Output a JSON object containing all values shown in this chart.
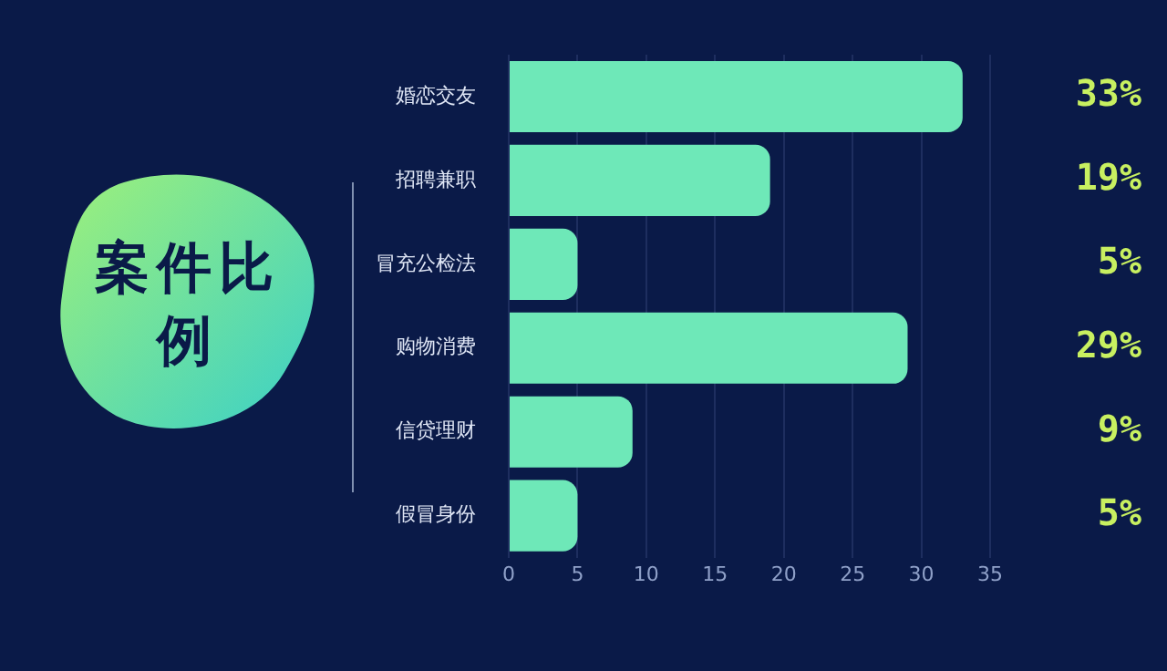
{
  "chart_data": {
    "type": "bar",
    "orientation": "horizontal",
    "title": "案件比例",
    "categories": [
      "婚恋交友",
      "招聘兼职",
      "冒充公检法",
      "购物消费",
      "信贷理财",
      "假冒身份"
    ],
    "values": [
      33,
      19,
      5,
      29,
      9,
      5
    ],
    "value_labels": [
      "33%",
      "19%",
      "5%",
      "29%",
      "9%",
      "5%"
    ],
    "color": "#6ee8b8",
    "xlim": [
      0,
      35
    ],
    "xticks": [
      0,
      5,
      10,
      15,
      20,
      25,
      30,
      35
    ],
    "grid": "x",
    "legend": false
  }
}
